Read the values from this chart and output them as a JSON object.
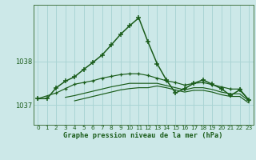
{
  "title": "Graphe pression niveau de la mer (hPa)",
  "bg_color": "#cce8e8",
  "grid_color": "#aad4d4",
  "line_color": "#1a5c1a",
  "xlim": [
    -0.5,
    23.5
  ],
  "ylim": [
    1036.55,
    1039.3
  ],
  "yticks": [
    1037,
    1038
  ],
  "xticks": [
    0,
    1,
    2,
    3,
    4,
    5,
    6,
    7,
    8,
    9,
    10,
    11,
    12,
    13,
    14,
    15,
    16,
    17,
    18,
    19,
    20,
    21,
    22,
    23
  ],
  "series1": [
    1037.15,
    1037.15,
    1037.4,
    1037.55,
    1037.65,
    1037.82,
    1037.98,
    1038.15,
    1038.38,
    1038.62,
    1038.82,
    1039.0,
    1038.45,
    1037.95,
    1037.58,
    1037.28,
    1037.38,
    1037.5,
    1037.58,
    1037.48,
    1037.38,
    1037.22,
    1037.35,
    1037.12
  ],
  "series2": [
    1037.15,
    null,
    1037.28,
    1037.38,
    1037.48,
    1037.52,
    1037.56,
    1037.62,
    1037.66,
    1037.7,
    1037.72,
    1037.72,
    1037.68,
    1037.62,
    1037.56,
    1037.52,
    1037.46,
    1037.5,
    1037.52,
    1037.47,
    1037.42,
    1037.37,
    1037.37,
    1037.12
  ],
  "series3": [
    null,
    null,
    null,
    1037.18,
    1037.22,
    1037.27,
    1037.32,
    1037.37,
    1037.42,
    1037.46,
    1037.5,
    1037.5,
    1037.5,
    1037.5,
    1037.45,
    1037.4,
    1037.35,
    1037.4,
    1037.4,
    1037.36,
    1037.3,
    1037.26,
    1037.26,
    1037.1
  ],
  "series4": [
    null,
    null,
    null,
    null,
    1037.1,
    1037.15,
    1037.2,
    1037.25,
    1037.3,
    1037.35,
    1037.38,
    1037.4,
    1037.4,
    1037.44,
    1037.4,
    1037.35,
    1037.3,
    1037.34,
    1037.34,
    1037.3,
    1037.24,
    1037.2,
    1037.2,
    1037.05
  ]
}
